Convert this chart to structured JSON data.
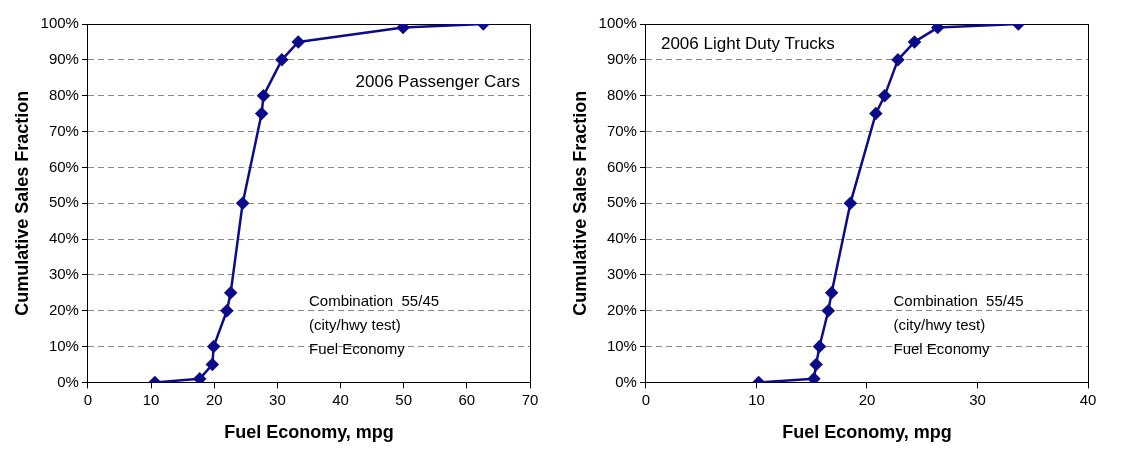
{
  "chart_data": [
    {
      "type": "line",
      "title": "2006 Passenger Cars",
      "xlabel": "Fuel Economy, mpg",
      "ylabel": "Cumulative Sales Fraction",
      "annotations": [
        "Combination  55/45\n(city/hwy test)\nFuel Economy"
      ],
      "series": [
        {
          "color": "#0c0c8a",
          "x": [
            10.6,
            17.7,
            19.7,
            19.9,
            22.0,
            22.6,
            24.5,
            27.5,
            27.8,
            30.7,
            33.3,
            49.9,
            62.6
          ],
          "values": [
            0,
            1,
            5,
            10,
            20,
            25,
            50,
            75,
            80,
            90,
            95,
            99,
            100
          ]
        }
      ],
      "xlim": [
        0,
        70
      ],
      "xticks": [
        0,
        10,
        20,
        30,
        40,
        50,
        60,
        70
      ],
      "ylim": [
        0,
        100
      ],
      "yticks": [
        {
          "value": 0,
          "label": "0%"
        },
        {
          "value": 10,
          "label": "10%"
        },
        {
          "value": 20,
          "label": "20%"
        },
        {
          "value": 30,
          "label": "30%"
        },
        {
          "value": 40,
          "label": "40%"
        },
        {
          "value": 50,
          "label": "50%"
        },
        {
          "value": 60,
          "label": "60%"
        },
        {
          "value": 70,
          "label": "70%"
        },
        {
          "value": 80,
          "label": "80%"
        },
        {
          "value": 90,
          "label": "90%"
        },
        {
          "value": 100,
          "label": "100%"
        }
      ],
      "grid": "y",
      "marker": "diamond",
      "line_style": "solid",
      "legend": false
    },
    {
      "type": "line",
      "title": "2006 Light Duty Trucks",
      "xlabel": "Fuel Economy, mpg",
      "ylabel": "Cumulative Sales Fraction",
      "annotations": [
        "Combination  55/45\n(city/hwy test)\nFuel Economy"
      ],
      "series": [
        {
          "color": "#0c0c8a",
          "x": [
            10.2,
            15.2,
            15.4,
            15.7,
            16.5,
            16.8,
            18.5,
            20.8,
            21.6,
            22.8,
            24.3,
            26.4,
            33.7
          ],
          "values": [
            0,
            1,
            5,
            10,
            20,
            25,
            50,
            75,
            80,
            90,
            95,
            99,
            100
          ]
        }
      ],
      "xlim": [
        0,
        40
      ],
      "xticks": [
        0,
        10,
        20,
        30,
        40
      ],
      "ylim": [
        0,
        100
      ],
      "yticks": [
        {
          "value": 0,
          "label": "0%"
        },
        {
          "value": 10,
          "label": "10%"
        },
        {
          "value": 20,
          "label": "20%"
        },
        {
          "value": 30,
          "label": "30%"
        },
        {
          "value": 40,
          "label": "40%"
        },
        {
          "value": 50,
          "label": "50%"
        },
        {
          "value": 60,
          "label": "60%"
        },
        {
          "value": 70,
          "label": "70%"
        },
        {
          "value": 80,
          "label": "80%"
        },
        {
          "value": 90,
          "label": "90%"
        },
        {
          "value": 100,
          "label": "100%"
        }
      ],
      "grid": "y",
      "marker": "diamond",
      "line_style": "solid",
      "legend": false
    }
  ]
}
